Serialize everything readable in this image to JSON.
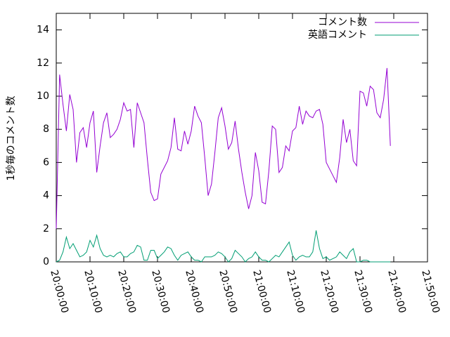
{
  "chart_data": {
    "type": "line",
    "ylabel": "1秒毎のコメント数",
    "x": [
      "20:00:00",
      "20:01:00",
      "20:02:00",
      "20:03:00",
      "20:04:00",
      "20:05:00",
      "20:06:00",
      "20:07:00",
      "20:08:00",
      "20:09:00",
      "20:10:00",
      "20:11:00",
      "20:12:00",
      "20:13:00",
      "20:14:00",
      "20:15:00",
      "20:16:00",
      "20:17:00",
      "20:18:00",
      "20:19:00",
      "20:20:00",
      "20:21:00",
      "20:22:00",
      "20:23:00",
      "20:24:00",
      "20:25:00",
      "20:26:00",
      "20:27:00",
      "20:28:00",
      "20:29:00",
      "20:30:00",
      "20:31:00",
      "20:32:00",
      "20:33:00",
      "20:34:00",
      "20:35:00",
      "20:36:00",
      "20:37:00",
      "20:38:00",
      "20:39:00",
      "20:40:00",
      "20:41:00",
      "20:42:00",
      "20:43:00",
      "20:44:00",
      "20:45:00",
      "20:46:00",
      "20:47:00",
      "20:48:00",
      "20:49:00",
      "20:50:00",
      "20:51:00",
      "20:52:00",
      "20:53:00",
      "20:54:00",
      "20:55:00",
      "20:56:00",
      "20:57:00",
      "20:58:00",
      "20:59:00",
      "21:00:00",
      "21:01:00",
      "21:02:00",
      "21:03:00",
      "21:04:00",
      "21:05:00",
      "21:06:00",
      "21:07:00",
      "21:08:00",
      "21:09:00",
      "21:10:00",
      "21:11:00",
      "21:12:00",
      "21:13:00",
      "21:14:00",
      "21:15:00",
      "21:16:00",
      "21:17:00",
      "21:18:00",
      "21:19:00",
      "21:20:00",
      "21:21:00",
      "21:22:00",
      "21:23:00",
      "21:24:00",
      "21:25:00",
      "21:26:00",
      "21:27:00",
      "21:28:00",
      "21:29:00",
      "21:30:00",
      "21:31:00",
      "21:32:00",
      "21:33:00",
      "21:34:00",
      "21:35:00",
      "21:36:00",
      "21:37:00",
      "21:38:00",
      "21:39:00"
    ],
    "series": [
      {
        "name": "コメント数",
        "color": "#9400d3",
        "values": [
          2.0,
          11.3,
          9.5,
          7.9,
          10.1,
          9.2,
          6.0,
          7.8,
          8.1,
          6.9,
          8.4,
          9.1,
          5.4,
          7.0,
          8.4,
          9.0,
          7.5,
          7.7,
          8.0,
          8.6,
          9.6,
          9.1,
          9.2,
          6.9,
          9.6,
          9.0,
          8.4,
          6.2,
          4.2,
          3.7,
          3.8,
          5.3,
          5.7,
          6.1,
          6.9,
          8.7,
          6.8,
          6.7,
          7.9,
          7.1,
          7.9,
          9.4,
          8.8,
          8.4,
          6.3,
          4.0,
          4.7,
          6.6,
          8.7,
          9.3,
          8.2,
          6.8,
          7.2,
          8.5,
          6.8,
          5.4,
          4.2,
          3.2,
          4.0,
          6.6,
          5.5,
          3.6,
          3.5,
          5.5,
          8.2,
          8.0,
          5.4,
          5.7,
          7.0,
          6.7,
          7.9,
          8.1,
          9.4,
          8.3,
          9.1,
          8.8,
          8.7,
          9.1,
          9.2,
          8.3,
          6.0,
          5.6,
          5.2,
          4.8,
          6.3,
          8.6,
          7.2,
          8.0,
          6.1,
          5.8,
          10.3,
          10.2,
          9.4,
          10.6,
          10.4,
          9.0,
          8.7,
          9.8,
          11.7,
          7.0
        ]
      },
      {
        "name": "英語コメント",
        "color": "#009e73",
        "values": [
          0.0,
          0.1,
          0.6,
          1.5,
          0.8,
          1.1,
          0.7,
          0.3,
          0.4,
          0.6,
          1.3,
          0.9,
          1.6,
          0.8,
          0.4,
          0.3,
          0.4,
          0.3,
          0.5,
          0.6,
          0.3,
          0.3,
          0.5,
          0.6,
          1.0,
          0.9,
          0.1,
          0.1,
          0.7,
          0.7,
          0.2,
          0.4,
          0.6,
          0.9,
          0.8,
          0.4,
          0.1,
          0.4,
          0.5,
          0.6,
          0.3,
          0.1,
          0.1,
          0.0,
          0.3,
          0.3,
          0.3,
          0.4,
          0.6,
          0.5,
          0.3,
          0.0,
          0.2,
          0.7,
          0.5,
          0.3,
          0.0,
          0.2,
          0.3,
          0.6,
          0.3,
          0.1,
          0.1,
          0.0,
          0.2,
          0.4,
          0.3,
          0.6,
          0.9,
          1.2,
          0.4,
          0.1,
          0.3,
          0.4,
          0.3,
          0.3,
          0.6,
          1.9,
          0.8,
          0.2,
          0.3,
          0.1,
          0.2,
          0.3,
          0.6,
          0.4,
          0.2,
          0.6,
          0.8,
          0.0,
          0.0,
          0.1,
          0.1,
          0.0,
          0.0,
          0.0,
          0.0,
          0.0,
          0.0,
          0.0
        ]
      }
    ],
    "xlim": [
      "20:00:00",
      "21:50:00"
    ],
    "xticks": [
      "20:00:00",
      "20:10:00",
      "20:20:00",
      "20:30:00",
      "20:40:00",
      "20:50:00",
      "21:00:00",
      "21:10:00",
      "21:20:00",
      "21:30:00",
      "21:40:00",
      "21:50:00"
    ],
    "ylim": [
      0,
      15
    ],
    "yticks": [
      0,
      2,
      4,
      6,
      8,
      10,
      12,
      14
    ],
    "legend": "top-right"
  }
}
